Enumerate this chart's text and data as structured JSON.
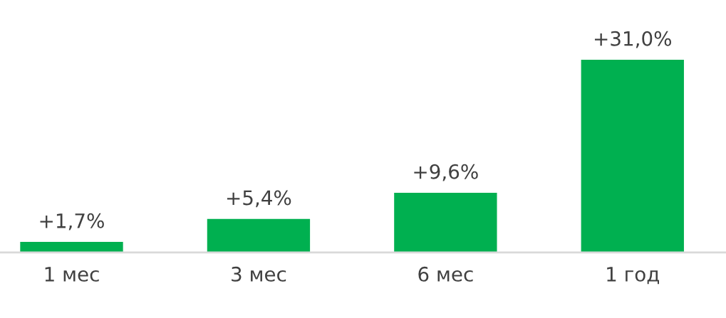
{
  "chart_data": {
    "type": "bar",
    "categories": [
      "1 мес",
      "3 мес",
      "6 мес",
      "1 год"
    ],
    "values": [
      1.7,
      5.4,
      9.6,
      31.0
    ],
    "value_labels": [
      "+1,7%",
      "+5,4%",
      "+9,6%",
      "+31,0%"
    ],
    "color": "#00b050",
    "grid": false,
    "legend": false
  }
}
